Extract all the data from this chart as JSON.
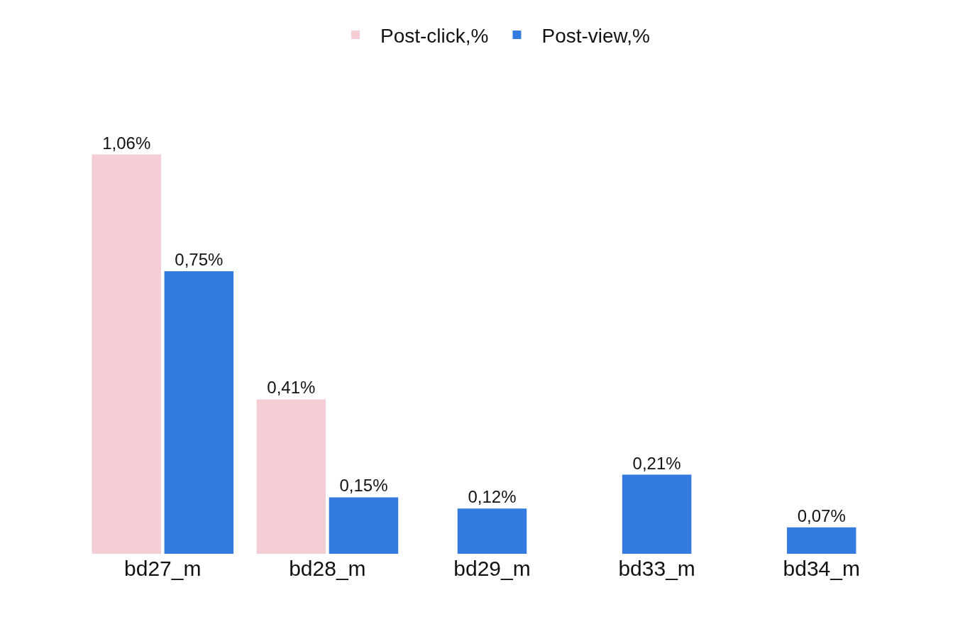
{
  "chart_data": {
    "type": "bar",
    "categories": [
      "bd27_m",
      "bd28_m",
      "bd29_m",
      "bd33_m",
      "bd34_m"
    ],
    "series": [
      {
        "name": "Post-click,%",
        "color": "#f5cdd5",
        "values": [
          1.06,
          0.41,
          null,
          null,
          null
        ],
        "value_labels": [
          "1,06%",
          "0,41%",
          null,
          null,
          null
        ]
      },
      {
        "name": "Post-view,%",
        "color": "#347be0",
        "values": [
          0.75,
          0.15,
          0.12,
          0.21,
          0.07
        ],
        "value_labels": [
          "0,75%",
          "0,15%",
          "0,12%",
          "0,21%",
          "0,07%"
        ]
      }
    ],
    "legend": "top"
  }
}
